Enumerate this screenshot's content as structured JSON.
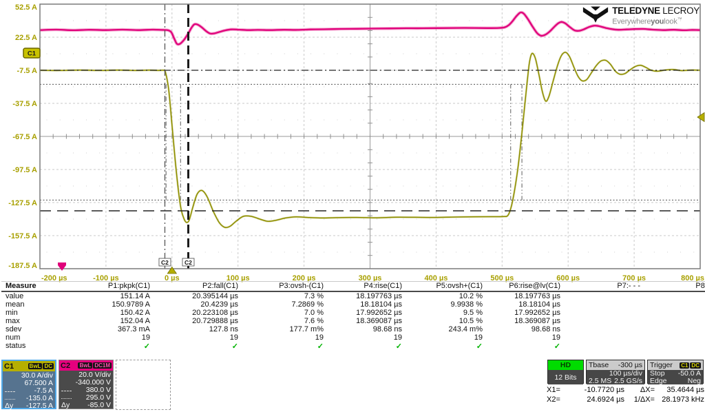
{
  "logo": {
    "brand_bold": "TELEDYNE",
    "brand_light": " LECROY",
    "tagline_1": "Everywhere",
    "tagline_2": "you",
    "tagline_3": "look",
    "tm": "™"
  },
  "grid_markers": {
    "channel_tag": "C1",
    "cursor_tag": "C2"
  },
  "axes": {
    "y_labels": [
      "52.5 A",
      "22.5 A",
      "-7.5 A",
      "-37.5 A",
      "-67.5 A",
      "-97.5 A",
      "-127.5 A",
      "-157.5 A",
      "-187.5 A"
    ],
    "x_labels": [
      "-200 µs",
      "-100 µs",
      "0 µs",
      "100 µs",
      "200 µs",
      "300 µs",
      "400 µs",
      "500 µs",
      "600 µs",
      "700 µs",
      "800 µs"
    ]
  },
  "measure": {
    "title": "Measure",
    "row_labels": [
      "value",
      "mean",
      "min",
      "max",
      "sdev",
      "num",
      "status"
    ],
    "columns": [
      {
        "header": "P1:pkpk(C1)",
        "values": [
          "151.14 A",
          "150.9789 A",
          "150.42 A",
          "152.04 A",
          "367.3 mA",
          "19",
          "✓"
        ]
      },
      {
        "header": "P2:fall(C1)",
        "values": [
          "20.395144 µs",
          "20.4239 µs",
          "20.223108 µs",
          "20.729888 µs",
          "127.8 ns",
          "19",
          "✓"
        ]
      },
      {
        "header": "P3:ovsh-(C1)",
        "values": [
          "7.3 %",
          "7.2869 %",
          "7.0 %",
          "7.6 %",
          "177.7 m%",
          "19",
          "✓"
        ]
      },
      {
        "header": "P4:rise(C1)",
        "values": [
          "18.197763 µs",
          "18.18104 µs",
          "17.992652 µs",
          "18.369087 µs",
          "98.68 ns",
          "19",
          "✓"
        ]
      },
      {
        "header": "P5:ovsh+(C1)",
        "values": [
          "10.2 %",
          "9.9938 %",
          "9.5 %",
          "10.5 %",
          "243.4 m%",
          "19",
          "✓"
        ]
      },
      {
        "header": "P6:rise@lv(C1)",
        "values": [
          "18.197763 µs",
          "18.18104 µs",
          "17.992652 µs",
          "18.369087 µs",
          "98.68 ns",
          "19",
          "✓"
        ]
      },
      {
        "header": "P7:- - -",
        "values": [
          "",
          "",
          "",
          "",
          "",
          "",
          ""
        ]
      },
      {
        "header": "P8:- - -",
        "values": [
          "",
          "",
          "",
          "",
          "",
          "",
          ""
        ]
      }
    ]
  },
  "channels": [
    {
      "id": "C1",
      "badges": [
        "BwL",
        "DC"
      ],
      "per_div": "30.0 A/div",
      "offset": "67.500 A",
      "cursor1": "-7.5 A",
      "cursor2": "-135.0 A",
      "dy_label": "Δy",
      "dy": "-127.5 A"
    },
    {
      "id": "C2",
      "badges": [
        "BwL",
        "DC1M"
      ],
      "per_div": "20.0 V/div",
      "offset": "-340.000 V",
      "cursor1": "380.0 V",
      "cursor2": "295.0 V",
      "dy_label": "Δy",
      "dy": "-85.0 V"
    }
  ],
  "hd": {
    "header": "HD",
    "body": "12 Bits"
  },
  "timebase": {
    "title": "Tbase",
    "offset": "-300 µs",
    "scale": "100 µs/div",
    "samples": "2.5 MS",
    "rate": "2.5 GS/s"
  },
  "trigger": {
    "title": "Trigger",
    "badges": [
      "C1",
      "DC"
    ],
    "mode": "Stop",
    "level": "-50.0 A",
    "coupling": "Edge",
    "slope": "Neg"
  },
  "cursors": {
    "x1_label": "X1=",
    "x1_value": "-10.7720 µs",
    "dx_label": "ΔX=",
    "dx_value": "35.4644 µs",
    "x2_label": "X2=",
    "x2_value": "24.6924 µs",
    "inv_dx_label": "1/ΔX=",
    "inv_dx_value": "28.1973 kHz"
  },
  "chart_data": {
    "type": "line",
    "title": "",
    "x_unit": "µs",
    "x_range_us": [
      -200,
      800
    ],
    "x_per_div_us": 100,
    "y_divisions": 8,
    "grid": true,
    "series": [
      {
        "name": "C2",
        "unit": "V",
        "per_div": 20,
        "center_value": 340,
        "color": "#e0007a",
        "points": [
          [
            -200,
            404.3
          ],
          [
            -175,
            404.6
          ],
          [
            -150,
            404.2
          ],
          [
            -125,
            404.5
          ],
          [
            -100,
            404.3
          ],
          [
            -75,
            404.6
          ],
          [
            -50,
            404.3
          ],
          [
            -30,
            404.6
          ],
          [
            -15,
            404.4
          ],
          [
            -6,
            404.2
          ],
          [
            -1,
            403
          ],
          [
            3,
            399.5
          ],
          [
            7,
            396.2
          ],
          [
            10,
            395.7
          ],
          [
            14,
            396.6
          ],
          [
            19,
            398.8
          ],
          [
            25,
            402.5
          ],
          [
            30,
            406
          ],
          [
            34,
            407.8
          ],
          [
            39,
            407.6
          ],
          [
            45,
            406
          ],
          [
            52,
            403.6
          ],
          [
            58,
            402.2
          ],
          [
            64,
            402.3
          ],
          [
            72,
            403.2
          ],
          [
            80,
            404.1
          ],
          [
            90,
            404.7
          ],
          [
            100,
            404.6
          ],
          [
            115,
            404.3
          ],
          [
            130,
            404.4
          ],
          [
            150,
            404.3
          ],
          [
            170,
            404.5
          ],
          [
            190,
            404.4
          ],
          [
            210,
            404.7
          ],
          [
            230,
            404.8
          ],
          [
            255,
            405
          ],
          [
            280,
            405.1
          ],
          [
            305,
            405.2
          ],
          [
            330,
            405.3
          ],
          [
            355,
            405.4
          ],
          [
            380,
            405.4
          ],
          [
            405,
            405.5
          ],
          [
            430,
            405.6
          ],
          [
            455,
            405.6
          ],
          [
            478,
            405.5
          ],
          [
            495,
            405.6
          ],
          [
            504,
            406
          ],
          [
            510,
            407.3
          ],
          [
            516,
            409.8
          ],
          [
            521,
            412.4
          ],
          [
            526,
            414.5
          ],
          [
            529,
            415
          ],
          [
            533,
            414.2
          ],
          [
            539,
            411
          ],
          [
            546,
            406.5
          ],
          [
            553,
            402.5
          ],
          [
            559,
            400.9
          ],
          [
            565,
            401.4
          ],
          [
            572,
            403.4
          ],
          [
            579,
            406.3
          ],
          [
            585,
            408.4
          ],
          [
            590,
            409.2
          ],
          [
            596,
            408.3
          ],
          [
            603,
            406
          ],
          [
            610,
            404.1
          ],
          [
            617,
            403.9
          ],
          [
            624,
            404.8
          ],
          [
            632,
            406.2
          ],
          [
            640,
            407
          ],
          [
            648,
            406.6
          ],
          [
            657,
            405.6
          ],
          [
            666,
            404.9
          ],
          [
            676,
            404.5
          ],
          [
            688,
            404.7
          ],
          [
            700,
            404.9
          ],
          [
            714,
            405
          ],
          [
            728,
            404.6
          ],
          [
            744,
            404.3
          ],
          [
            760,
            404.5
          ],
          [
            775,
            404.2
          ],
          [
            788,
            404.4
          ],
          [
            800,
            404.3
          ]
        ]
      },
      {
        "name": "C1",
        "unit": "A",
        "per_div": 30,
        "center_value": -67.5,
        "color": "#8f8f00",
        "points": [
          [
            -200,
            -7.5
          ],
          [
            -170,
            -7.7
          ],
          [
            -140,
            -7.3
          ],
          [
            -110,
            -7.6
          ],
          [
            -80,
            -7.3
          ],
          [
            -55,
            -7.7
          ],
          [
            -35,
            -7.4
          ],
          [
            -20,
            -7.6
          ],
          [
            -13,
            -7.5
          ],
          [
            -10,
            -9
          ],
          [
            -5,
            -25
          ],
          [
            0,
            -57
          ],
          [
            5,
            -90
          ],
          [
            10,
            -118
          ],
          [
            14,
            -134
          ],
          [
            18,
            -142
          ],
          [
            22,
            -145.5
          ],
          [
            26,
            -143.5
          ],
          [
            31,
            -133
          ],
          [
            38,
            -120
          ],
          [
            45,
            -116.5
          ],
          [
            53,
            -122
          ],
          [
            63,
            -136
          ],
          [
            72,
            -146
          ],
          [
            80,
            -150
          ],
          [
            88,
            -149
          ],
          [
            97,
            -144.5
          ],
          [
            108,
            -140
          ],
          [
            120,
            -140
          ],
          [
            133,
            -142.5
          ],
          [
            145,
            -144.5
          ],
          [
            158,
            -143.5
          ],
          [
            172,
            -141.5
          ],
          [
            188,
            -140.5
          ],
          [
            205,
            -141
          ],
          [
            225,
            -141.5
          ],
          [
            250,
            -141.2
          ],
          [
            280,
            -141
          ],
          [
            310,
            -141.3
          ],
          [
            340,
            -140.8
          ],
          [
            370,
            -140.9
          ],
          [
            400,
            -141
          ],
          [
            430,
            -140.6
          ],
          [
            460,
            -140.4
          ],
          [
            485,
            -140.3
          ],
          [
            502,
            -140.2
          ],
          [
            509,
            -139
          ],
          [
            514,
            -131
          ],
          [
            519,
            -116
          ],
          [
            524,
            -96
          ],
          [
            529,
            -70
          ],
          [
            534,
            -41
          ],
          [
            538,
            -18
          ],
          [
            541,
            -2
          ],
          [
            544,
            6.5
          ],
          [
            547,
            7.5
          ],
          [
            551,
            2
          ],
          [
            556,
            -12
          ],
          [
            561,
            -27
          ],
          [
            566,
            -35.5
          ],
          [
            571,
            -31
          ],
          [
            577,
            -18
          ],
          [
            584,
            -3
          ],
          [
            590,
            6
          ],
          [
            596,
            8.8
          ],
          [
            602,
            5
          ],
          [
            609,
            -5
          ],
          [
            615,
            -13
          ],
          [
            621,
            -17
          ],
          [
            628,
            -16
          ],
          [
            635,
            -10
          ],
          [
            643,
            -3
          ],
          [
            650,
            1
          ],
          [
            657,
            1.5
          ],
          [
            664,
            -2
          ],
          [
            671,
            -8
          ],
          [
            678,
            -11
          ],
          [
            686,
            -10.5
          ],
          [
            694,
            -7
          ],
          [
            702,
            -4
          ],
          [
            710,
            -3
          ],
          [
            718,
            -5
          ],
          [
            726,
            -7.5
          ],
          [
            736,
            -8.3
          ],
          [
            748,
            -7.2
          ],
          [
            760,
            -6.8
          ],
          [
            772,
            -7.8
          ],
          [
            786,
            -7.3
          ],
          [
            800,
            -7.5
          ]
        ]
      }
    ],
    "annotations": {
      "x_cursors_us": [
        -10.772,
        24.6924
      ],
      "y_cursors_c1_A": [
        -7.5,
        -135.0
      ],
      "threshold_levels_c1_A": [
        -20.25,
        -125.25
      ],
      "gate_times_us": [
        -9,
        13,
        513,
        530
      ],
      "trigger_time_us": 0,
      "trigger_level_c1_A": -50
    }
  }
}
